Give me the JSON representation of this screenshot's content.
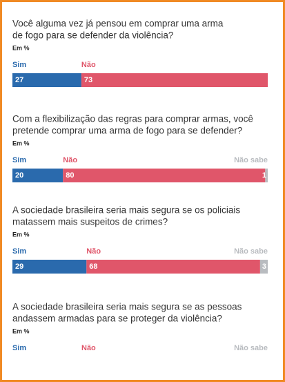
{
  "chart_data": [
    {
      "type": "bar",
      "stacked": true,
      "orientation": "horizontal",
      "title": [
        "Você alguma vez já pensou em comprar uma arma",
        "de fogo para se defender da violência?"
      ],
      "subtitle": "Em %",
      "series": [
        {
          "name": "Sim",
          "color": "#2a6aad",
          "values": [
            27
          ]
        },
        {
          "name": "Não",
          "color": "#e0566a",
          "values": [
            73
          ]
        }
      ]
    },
    {
      "type": "bar",
      "stacked": true,
      "orientation": "horizontal",
      "title": [
        "Com a flexibilização das regras para comprar armas, você",
        "pretende comprar uma arma de fogo para se defender?"
      ],
      "subtitle": "Em %",
      "series": [
        {
          "name": "Sim",
          "color": "#2a6aad",
          "values": [
            20
          ]
        },
        {
          "name": "Não",
          "color": "#e0566a",
          "values": [
            80
          ]
        },
        {
          "name": "Não sabe",
          "color": "#b9bcc0",
          "values": [
            1
          ]
        }
      ]
    },
    {
      "type": "bar",
      "stacked": true,
      "orientation": "horizontal",
      "title": [
        "A sociedade brasileira seria mais segura se os policiais",
        "matassem mais suspeitos de crimes?"
      ],
      "subtitle": "Em %",
      "series": [
        {
          "name": "Sim",
          "color": "#2a6aad",
          "values": [
            29
          ]
        },
        {
          "name": "Não",
          "color": "#e0566a",
          "values": [
            68
          ]
        },
        {
          "name": "Não sabe",
          "color": "#b9bcc0",
          "values": [
            3
          ]
        }
      ]
    },
    {
      "type": "bar",
      "stacked": true,
      "orientation": "horizontal",
      "title": [
        "A sociedade brasileira seria mais segura se as pessoas",
        "andassem armadas para se proteger da violência?"
      ],
      "subtitle": "Em %",
      "series": [
        {
          "name": "Sim",
          "color": "#2a6aad",
          "values": [
            null
          ]
        },
        {
          "name": "Não",
          "color": "#e0566a",
          "values": [
            null
          ]
        },
        {
          "name": "Não sabe",
          "color": "#b9bcc0",
          "values": [
            null
          ]
        }
      ]
    }
  ]
}
